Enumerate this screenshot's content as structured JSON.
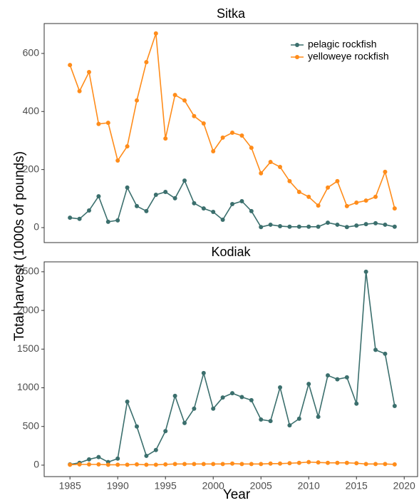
{
  "chart_data": [
    {
      "type": "line",
      "title": "Sitka",
      "y_label": "Total harvest (1000s of pounds)",
      "legend": "top-right",
      "x": [
        1985,
        1986,
        1987,
        1988,
        1989,
        1990,
        1991,
        1992,
        1993,
        1994,
        1995,
        1996,
        1997,
        1998,
        1999,
        2000,
        2001,
        2002,
        2003,
        2004,
        2005,
        2006,
        2007,
        2008,
        2009,
        2010,
        2011,
        2012,
        2013,
        2014,
        2015,
        2016,
        2017,
        2018,
        2019
      ],
      "xlim": [
        1982.3,
        2021.4
      ],
      "ylim": [
        -51.6,
        703
      ],
      "yticks": [
        0,
        200,
        400,
        600
      ],
      "series": [
        {
          "name": "pelagic rockfish",
          "color": "#3b6f6d",
          "values": [
            34,
            30,
            59,
            108,
            20,
            25,
            138,
            74,
            57,
            113,
            123,
            101,
            162,
            84,
            66,
            54,
            27,
            81,
            91,
            57,
            2,
            10,
            5,
            3,
            3,
            3,
            3,
            17,
            10,
            2,
            7,
            12,
            15,
            10,
            3
          ]
        },
        {
          "name": "yelloweye rockfish",
          "color": "#ff8c1a",
          "values": [
            560,
            470,
            536,
            357,
            361,
            231,
            280,
            438,
            570,
            669,
            307,
            457,
            438,
            384,
            359,
            263,
            310,
            327,
            317,
            275,
            187,
            226,
            209,
            160,
            123,
            106,
            76,
            138,
            160,
            74,
            86,
            93,
            106,
            192,
            66
          ]
        }
      ]
    },
    {
      "type": "line",
      "title": "Kodiak",
      "x_label": "Year",
      "x": [
        1985,
        1986,
        1987,
        1988,
        1989,
        1990,
        1991,
        1992,
        1993,
        1994,
        1995,
        1996,
        1997,
        1998,
        1999,
        2000,
        2001,
        2002,
        2003,
        2004,
        2005,
        2006,
        2007,
        2008,
        2009,
        2010,
        2011,
        2012,
        2013,
        2014,
        2015,
        2016,
        2017,
        2018,
        2019
      ],
      "xlim": [
        1982.3,
        2021.4
      ],
      "xticks": [
        1985,
        1990,
        1995,
        2000,
        2005,
        2010,
        2015,
        2020
      ],
      "ylim": [
        -148,
        2628
      ],
      "yticks": [
        0,
        500,
        1000,
        1500,
        2000,
        2500
      ],
      "series": [
        {
          "color": "#3b6f6d",
          "values": [
            10,
            30,
            75,
            105,
            40,
            85,
            820,
            500,
            120,
            195,
            440,
            895,
            545,
            730,
            1190,
            730,
            875,
            930,
            880,
            840,
            590,
            570,
            1005,
            515,
            600,
            1050,
            625,
            1160,
            1110,
            1135,
            795,
            2500,
            1490,
            1440,
            765
          ]
        },
        {
          "color": "#ff8c1a",
          "values": [
            5,
            10,
            10,
            10,
            5,
            5,
            5,
            10,
            5,
            5,
            10,
            15,
            15,
            15,
            15,
            15,
            15,
            20,
            15,
            15,
            15,
            20,
            20,
            25,
            30,
            40,
            35,
            30,
            30,
            30,
            25,
            15,
            15,
            15,
            10
          ]
        }
      ]
    }
  ]
}
